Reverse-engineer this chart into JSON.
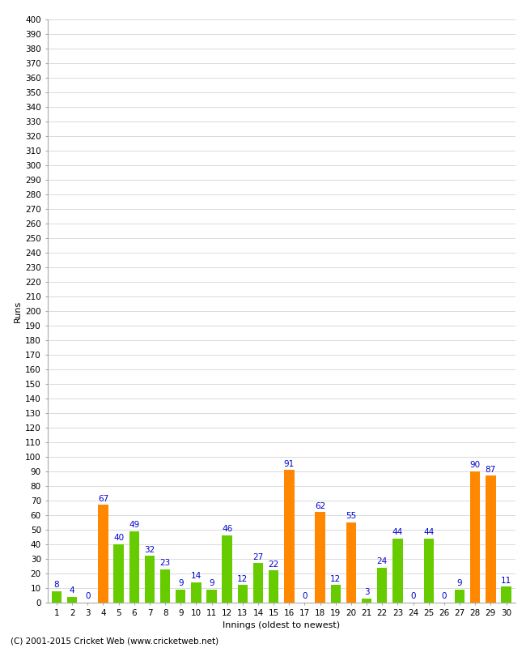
{
  "xlabel": "Innings (oldest to newest)",
  "ylabel": "Runs",
  "footer": "(C) 2001-2015 Cricket Web (www.cricketweb.net)",
  "ylim": [
    0,
    400
  ],
  "innings": [
    1,
    2,
    3,
    4,
    5,
    6,
    7,
    8,
    9,
    10,
    11,
    12,
    13,
    14,
    15,
    16,
    17,
    18,
    19,
    20,
    21,
    22,
    23,
    24,
    25,
    26,
    27,
    28,
    29,
    30
  ],
  "values": [
    8,
    4,
    0,
    67,
    40,
    49,
    32,
    23,
    9,
    14,
    9,
    46,
    12,
    27,
    22,
    91,
    0,
    62,
    12,
    55,
    3,
    24,
    44,
    0,
    44,
    0,
    9,
    90,
    87,
    11
  ],
  "colors": [
    "#66cc00",
    "#66cc00",
    "#66cc00",
    "#ff8800",
    "#66cc00",
    "#66cc00",
    "#66cc00",
    "#66cc00",
    "#66cc00",
    "#66cc00",
    "#66cc00",
    "#66cc00",
    "#66cc00",
    "#66cc00",
    "#66cc00",
    "#ff8800",
    "#66cc00",
    "#ff8800",
    "#66cc00",
    "#ff8800",
    "#66cc00",
    "#66cc00",
    "#66cc00",
    "#66cc00",
    "#66cc00",
    "#66cc00",
    "#66cc00",
    "#ff8800",
    "#ff8800",
    "#66cc00"
  ],
  "label_color": "#0000cc",
  "background_color": "#ffffff",
  "grid_color": "#cccccc",
  "label_fontsize": 8,
  "tick_fontsize": 7.5,
  "bar_label_fontsize": 7.5,
  "footer_fontsize": 7.5,
  "bar_width": 0.65
}
